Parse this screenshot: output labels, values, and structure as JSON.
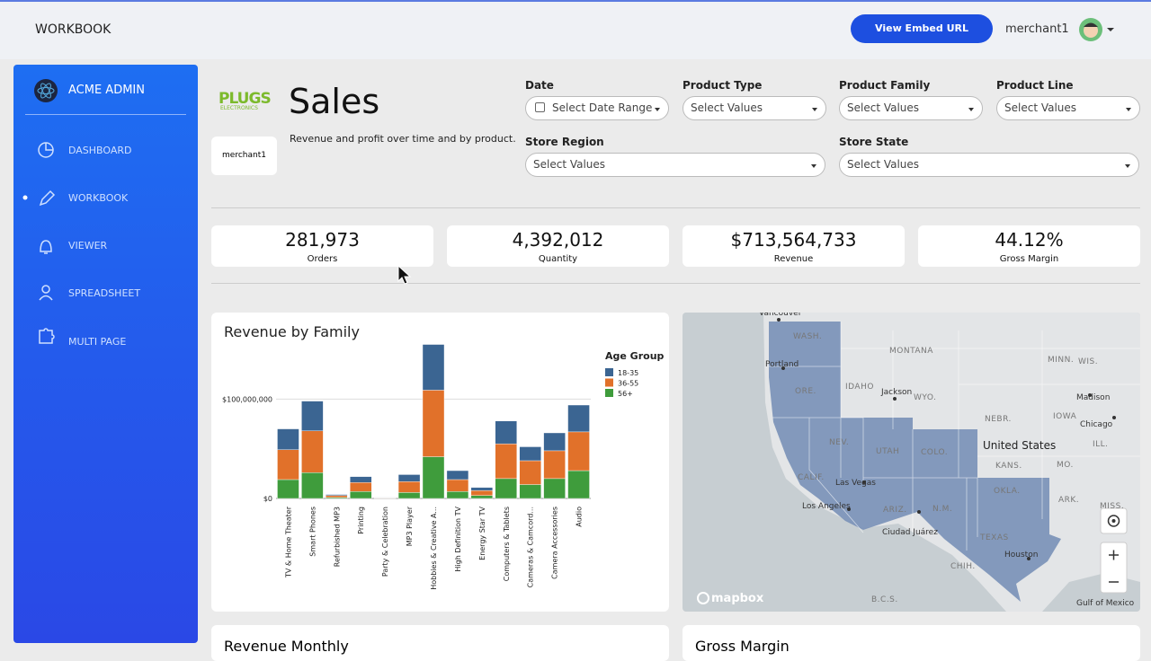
{
  "header": {
    "title": "WORKBOOK",
    "embed_button": "View Embed URL",
    "user": "merchant1"
  },
  "sidebar": {
    "brand": "ACME ADMIN",
    "nav": [
      "DASHBOARD",
      "WORKBOOK",
      "VIEWER",
      "SPREADSHEET",
      "MULTI PAGE"
    ]
  },
  "page": {
    "logo": "PLUGS",
    "logo_sub": "ELECTRONICS",
    "merchant": "merchant1",
    "title": "Sales",
    "description": "Revenue and profit over time and by product."
  },
  "filters": [
    {
      "label": "Date",
      "placeholder": "Select Date Range"
    },
    {
      "label": "Product Type",
      "placeholder": "Select Values"
    },
    {
      "label": "Product Family",
      "placeholder": "Select Values"
    },
    {
      "label": "Product Line",
      "placeholder": "Select Values"
    },
    {
      "label": "Store Region",
      "placeholder": "Select Values"
    },
    {
      "label": "Store State",
      "placeholder": "Select Values"
    }
  ],
  "kpis": [
    {
      "value": "281,973",
      "label": "Orders"
    },
    {
      "value": "4,392,012",
      "label": "Quantity"
    },
    {
      "value": "$713,564,733",
      "label": "Revenue"
    },
    {
      "value": "44.12%",
      "label": "Gross Margin"
    }
  ],
  "chart_data": {
    "type": "bar",
    "stacked": true,
    "title": "Revenue by Family",
    "legend_title": "Age Group",
    "categories": [
      "TV & Home Theater",
      "Smart Phones",
      "Refurbished MP3",
      "Printing",
      "Party & Celebration",
      "MP3 Player",
      "Hobbies & Creative A...",
      "High Definition TV",
      "Energy Star TV",
      "Computers & Tablets",
      "Cameras & Camcord...",
      "Camera Accessories",
      "Audio"
    ],
    "series": [
      {
        "name": "18-35",
        "color": "#3b6592",
        "values": [
          21000000,
          30000000,
          1000000,
          6000000,
          300000,
          7000000,
          46000000,
          9000000,
          3000000,
          23000000,
          14000000,
          18000000,
          27000000
        ]
      },
      {
        "name": "36-55",
        "color": "#e1712a",
        "values": [
          30000000,
          42000000,
          2000000,
          9000000,
          400000,
          11000000,
          67000000,
          12000000,
          5000000,
          35000000,
          24000000,
          28000000,
          39000000
        ]
      },
      {
        "name": "56+",
        "color": "#3f9c3c",
        "values": [
          19000000,
          26000000,
          1000000,
          7000000,
          300000,
          6000000,
          42000000,
          7000000,
          3000000,
          20000000,
          14000000,
          20000000,
          28000000
        ]
      }
    ],
    "ylim": [
      0,
      160000000
    ],
    "yticks": [
      {
        "value": 0,
        "label": "$0"
      },
      {
        "value": 100000000,
        "label": "$100,000,000"
      }
    ],
    "grid": true
  },
  "map": {
    "labels": [
      "Vancouver",
      "WASH.",
      "Portland",
      "ORE.",
      "MONTANA",
      "IDAHO",
      "Jackson",
      "WYO.",
      "NEV.",
      "UTAH",
      "COLO.",
      "CALIF.",
      "Las Vegas",
      "Los Angeles",
      "ARIZ.",
      "N.M.",
      "Ciudad Juárez",
      "TEXAS",
      "OKLA.",
      "Houston",
      "United States",
      "NEBR.",
      "KANS.",
      "IOWA",
      "MINN.",
      "WIS.",
      "Madison",
      "Chicago",
      "ILL.",
      "MO.",
      "ARK.",
      "MISS.",
      "CHIH.",
      "B.C.S.",
      "Gulf of Mexico"
    ],
    "attribution": "mapbox"
  },
  "cards": [
    "Revenue Monthly",
    "Gross Margin"
  ]
}
